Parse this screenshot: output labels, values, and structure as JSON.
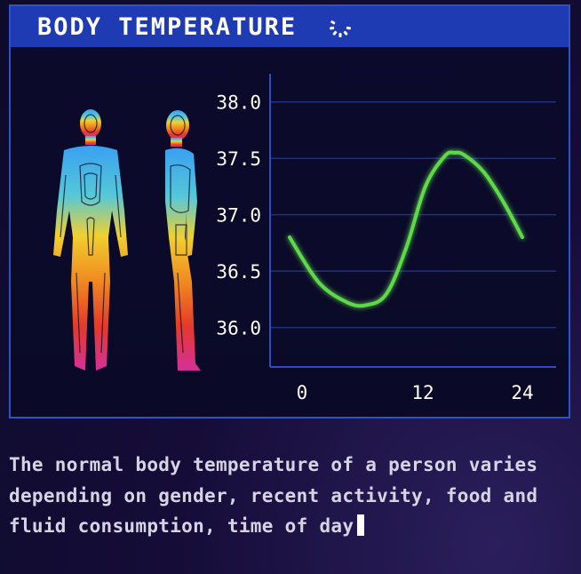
{
  "header": {
    "title": "BODY TEMPERATURE",
    "icon": "loading-spinner-icon"
  },
  "figures": {
    "front_icon": "body-front-thermal-icon",
    "side_icon": "body-side-thermal-icon"
  },
  "chart_data": {
    "type": "line",
    "title": "",
    "xlabel": "",
    "ylabel": "",
    "x_ticks": [
      "0",
      "12",
      "24"
    ],
    "y_ticks": [
      "38.0",
      "37.5",
      "37.0",
      "36.5",
      "36.0"
    ],
    "xlim": [
      0,
      24
    ],
    "ylim": [
      35.65,
      38.25
    ],
    "grid": true,
    "series": [
      {
        "color": "#5ed84a",
        "x": [
          0,
          3,
          6,
          8,
          10,
          12,
          14,
          16,
          17,
          18,
          20,
          22,
          24
        ],
        "y": [
          36.8,
          36.4,
          36.22,
          36.2,
          36.3,
          36.7,
          37.25,
          37.52,
          37.55,
          37.53,
          37.38,
          37.12,
          36.8
        ]
      }
    ],
    "colors": {
      "axis": "#2e4bd0",
      "grid": "#1f3080",
      "tick_label": "#ffffff"
    }
  },
  "caption": {
    "text": "The normal body temperature of a person varies depending on gender, recent activity, food and fluid consumption, time of day"
  }
}
